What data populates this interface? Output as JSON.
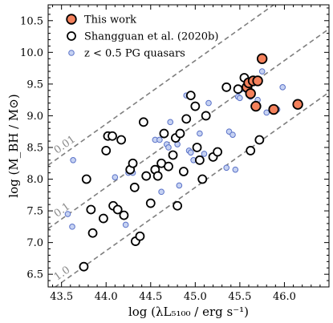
{
  "chart_data": {
    "type": "scatter",
    "xlabel": "log (λL₅₁₀₀ / erg s⁻¹)",
    "ylabel": "log (M_BH / M⊙)",
    "xlim": [
      43.35,
      46.5
    ],
    "ylim": [
      6.3,
      10.75
    ],
    "xticks": [
      43.5,
      44.0,
      44.5,
      45.0,
      45.5,
      46.0
    ],
    "xtick_labels": [
      "43.5",
      "44.0",
      "44.5",
      "45.0",
      "45.5",
      "46.0"
    ],
    "yticks": [
      6.5,
      7.0,
      7.5,
      8.0,
      8.5,
      9.0,
      9.5,
      10.0,
      10.5
    ],
    "ytick_labels": [
      "6.5",
      "7.0",
      "7.5",
      "8.0",
      "8.5",
      "9.0",
      "9.5",
      "10.0",
      "10.5"
    ],
    "grid": false,
    "legend_position": "top-left",
    "ratio_lines": [
      {
        "label": "0.01",
        "x0": 43.35,
        "y0": 8.22,
        "x1": 46.5,
        "y1": 11.37
      },
      {
        "label": "0.1",
        "x0": 43.35,
        "y0": 7.22,
        "x1": 46.5,
        "y1": 10.37
      },
      {
        "label": "1.0",
        "x0": 43.35,
        "y0": 6.22,
        "x1": 46.5,
        "y1": 9.37
      }
    ],
    "series": [
      {
        "name": "z < 0.5 PG quasars",
        "marker": "small-circle",
        "fill": "#c6d2f2",
        "stroke": "#5a72c8",
        "x": [
          43.57,
          43.62,
          43.63,
          44.1,
          44.22,
          44.25,
          44.3,
          44.55,
          44.6,
          44.62,
          44.68,
          44.7,
          44.72,
          44.8,
          44.82,
          44.9,
          44.93,
          44.95,
          44.98,
          45.05,
          45.1,
          45.15,
          45.35,
          45.38,
          45.42,
          45.45,
          45.48,
          45.5,
          45.52,
          45.58,
          45.6,
          45.62,
          45.7,
          45.75,
          45.8,
          45.92,
          45.98
        ],
        "y": [
          7.45,
          7.25,
          8.3,
          8.03,
          7.28,
          8.1,
          8.1,
          8.62,
          8.62,
          7.8,
          8.55,
          8.5,
          8.9,
          8.55,
          7.9,
          9.32,
          8.45,
          8.42,
          8.3,
          8.72,
          8.4,
          9.2,
          8.18,
          8.75,
          8.7,
          8.15,
          9.3,
          9.28,
          9.42,
          9.4,
          9.5,
          9.3,
          9.25,
          9.7,
          9.05,
          9.1,
          9.45
        ]
      },
      {
        "name": "Shangguan et al. (2020b)",
        "marker": "open-circle",
        "fill": "#ffffff",
        "stroke": "#000000",
        "x": [
          43.75,
          43.78,
          43.83,
          43.85,
          43.97,
          44.0,
          44.02,
          44.07,
          44.08,
          44.13,
          44.17,
          44.2,
          44.27,
          44.3,
          44.32,
          44.33,
          44.38,
          44.42,
          44.45,
          44.5,
          44.55,
          44.58,
          44.62,
          44.65,
          44.7,
          44.75,
          44.78,
          44.8,
          44.83,
          44.87,
          44.9,
          44.95,
          45.0,
          45.02,
          45.05,
          45.08,
          45.12,
          45.2,
          45.25,
          45.35,
          45.48,
          45.55,
          45.62,
          45.68,
          45.72
        ],
        "y": [
          6.62,
          8.0,
          7.52,
          7.15,
          7.38,
          8.45,
          8.68,
          8.68,
          7.58,
          7.52,
          8.62,
          7.43,
          8.15,
          8.25,
          7.87,
          7.02,
          7.1,
          8.9,
          8.05,
          7.62,
          8.15,
          8.05,
          8.25,
          8.72,
          8.2,
          8.38,
          8.65,
          7.58,
          8.72,
          8.12,
          8.95,
          9.32,
          9.15,
          8.5,
          8.3,
          8.0,
          9.0,
          8.35,
          8.43,
          9.45,
          9.42,
          9.6,
          8.45,
          9.55,
          8.62
        ]
      },
      {
        "name": "This work",
        "marker": "filled-circle",
        "fill": "#f4815c",
        "stroke": "#000000",
        "x": [
          45.58,
          45.6,
          45.62,
          45.65,
          45.68,
          45.7,
          45.75,
          45.88,
          46.15
        ],
        "y": [
          9.45,
          9.52,
          9.35,
          9.55,
          9.15,
          9.55,
          9.9,
          9.1,
          9.18
        ]
      }
    ]
  }
}
